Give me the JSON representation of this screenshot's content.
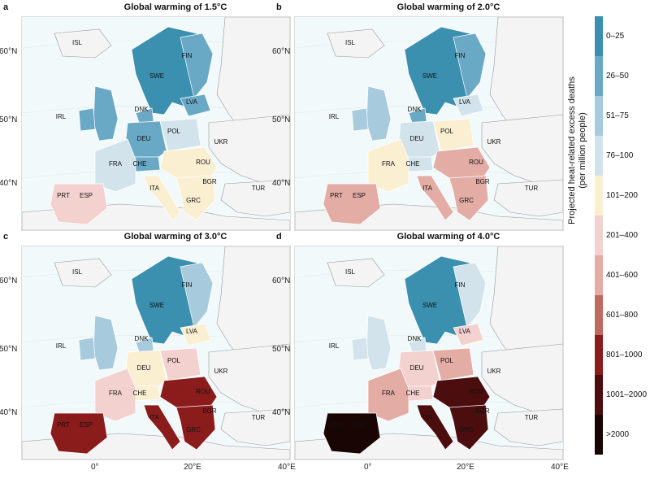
{
  "panels": [
    {
      "letter": "a",
      "title": "Global warming of 1.5°C"
    },
    {
      "letter": "b",
      "title": "Global warming of 2.0°C"
    },
    {
      "letter": "c",
      "title": "Global warming of 3.0°C"
    },
    {
      "letter": "d",
      "title": "Global warming of 4.0°C"
    }
  ],
  "countries": [
    "ISL",
    "FIN",
    "SWE",
    "LVA",
    "DNK",
    "IRL",
    "POL",
    "DEU",
    "UKR",
    "FRA",
    "CHE",
    "ROU",
    "BGR",
    "PRT",
    "ESP",
    "ITA",
    "GRC",
    "TUR"
  ],
  "lat_ticks": [
    "60°N",
    "50°N",
    "40°N"
  ],
  "lon_ticks": [
    "0°",
    "20°E",
    "40°E"
  ],
  "legend": {
    "title_line1": "Projected heat-related excess deaths",
    "title_line2": "(per million people)",
    "bins": [
      {
        "label": "0–25",
        "color": "#3b8faf"
      },
      {
        "label": "26–50",
        "color": "#6aa9c6"
      },
      {
        "label": "51–75",
        "color": "#a7cbdc"
      },
      {
        "label": "76–100",
        "color": "#d2e3ec"
      },
      {
        "label": "101–200",
        "color": "#fbefd2"
      },
      {
        "label": "201–400",
        "color": "#f3d1cf"
      },
      {
        "label": "401–600",
        "color": "#e3aca5"
      },
      {
        "label": "601–800",
        "color": "#c06a5f"
      },
      {
        "label": "801–1000",
        "color": "#8b1c1c"
      },
      {
        "label": "1001–2000",
        "color": "#4b0d0d"
      },
      {
        "label": ">2000",
        "color": "#1a0505"
      }
    ]
  },
  "colors": {
    "land": "#f4f4f4",
    "sea": "#f1f9fb",
    "border": "#999999"
  }
}
